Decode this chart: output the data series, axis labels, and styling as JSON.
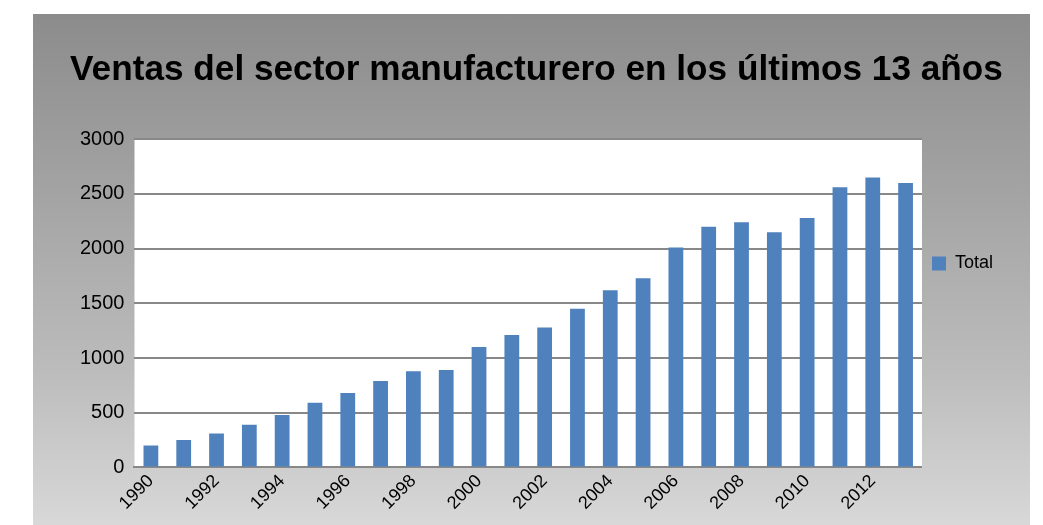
{
  "chart_data": {
    "type": "bar",
    "title": "Ventas del sector manufacturero en los últimos 13 años",
    "categories": [
      "1990",
      null,
      "1992",
      null,
      "1994",
      null,
      "1996",
      null,
      "1998",
      null,
      "2000",
      null,
      "2002",
      null,
      "2004",
      null,
      "2006",
      null,
      "2008",
      null,
      "2010",
      null,
      "2012",
      null
    ],
    "series": [
      {
        "name": "Total",
        "color": "#4f81bd",
        "values": [
          200,
          250,
          310,
          390,
          480,
          590,
          680,
          790,
          880,
          890,
          1100,
          1210,
          1280,
          1450,
          1620,
          1730,
          2010,
          2200,
          2240,
          2150,
          2280,
          2560,
          2650,
          2600
        ]
      }
    ],
    "ylim": [
      0,
      3000
    ],
    "yticks": [
      0,
      500,
      1000,
      1500,
      2000,
      2500,
      3000
    ],
    "grid": "y",
    "legend": "right"
  }
}
